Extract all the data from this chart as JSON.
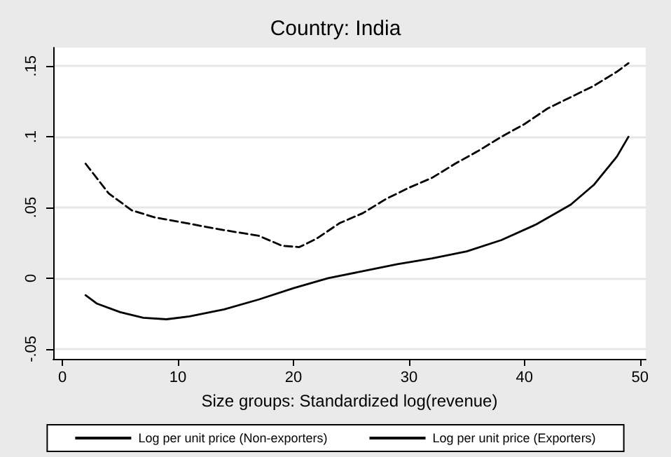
{
  "chart_data": {
    "type": "line",
    "title": "Country: India",
    "xlabel": "Size groups: Standardized log(revenue)",
    "xlim": [
      -0.8,
      50.5
    ],
    "xticks": [
      0,
      10,
      20,
      30,
      40,
      50
    ],
    "ylim": [
      -0.057,
      0.163
    ],
    "yticks": [
      {
        "value": -0.05,
        "label": "-.05"
      },
      {
        "value": 0,
        "label": "0"
      },
      {
        "value": 0.05,
        "label": ".05"
      },
      {
        "value": 0.1,
        "label": ".1"
      },
      {
        "value": 0.15,
        "label": ".15"
      }
    ],
    "grid": "y",
    "legend": "bottom",
    "marker": "none",
    "series": [
      {
        "name": "Log per unit price (Non-exporters)",
        "color": "#000000",
        "line_style": "solid",
        "x": [
          2,
          3,
          5,
          7,
          9,
          11,
          14,
          17,
          20,
          23,
          26,
          29,
          32,
          35,
          38,
          41,
          44,
          46,
          48,
          49
        ],
        "values": [
          -0.012,
          -0.018,
          -0.024,
          -0.028,
          -0.029,
          -0.027,
          -0.022,
          -0.015,
          -0.007,
          0.0,
          0.005,
          0.01,
          0.014,
          0.019,
          0.027,
          0.038,
          0.052,
          0.066,
          0.086,
          0.1
        ]
      },
      {
        "name": "Log per unit price (Exporters)",
        "color": "#000000",
        "line_style": "dashed",
        "x": [
          2,
          4,
          6,
          8,
          10,
          14,
          17,
          19,
          20.5,
          22,
          24,
          26,
          28,
          30,
          32,
          34,
          36,
          38,
          40,
          42,
          44,
          46,
          48,
          49
        ],
        "values": [
          0.081,
          0.06,
          0.048,
          0.043,
          0.04,
          0.034,
          0.03,
          0.023,
          0.022,
          0.028,
          0.039,
          0.046,
          0.056,
          0.064,
          0.071,
          0.081,
          0.09,
          0.1,
          0.109,
          0.12,
          0.128,
          0.136,
          0.146,
          0.152
        ]
      }
    ]
  }
}
